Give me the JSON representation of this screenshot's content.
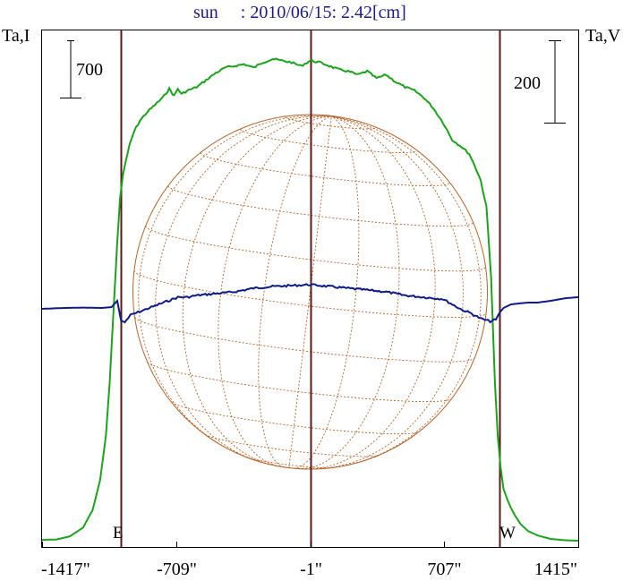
{
  "chart_data": {
    "type": "line",
    "title": "sun     : 2010/06/15: 2.42[cm]",
    "left_axis_label": "Ta,I",
    "right_axis_label": "Ta,V",
    "left_scale_bar_label": "700",
    "right_scale_bar_label": "200",
    "east_label": "E",
    "west_label": "W",
    "x_tick_labels": [
      "-1417\"",
      "-709\"",
      "-1\"",
      "707\"",
      "1415\""
    ],
    "x_tick_values": [
      -1417,
      -709,
      -1,
      707,
      1415
    ],
    "xlim": [
      -1417,
      1415
    ],
    "limb_positions": [
      -1000,
      997
    ],
    "center_position": -1,
    "ylim_I": [
      0,
      2800
    ],
    "ylim_V": [
      -1000,
      1000
    ],
    "grid": false,
    "series": [
      {
        "name": "I",
        "color": "#1aa31a",
        "x": [
          -1417,
          -1340,
          -1270,
          -1200,
          -1150,
          -1110,
          -1080,
          -1060,
          -1040,
          -1020,
          -1005,
          -990,
          -975,
          -955,
          -930,
          -900,
          -860,
          -820,
          -780,
          -745,
          -720,
          -700,
          -680,
          -650,
          -600,
          -550,
          -500,
          -450,
          -400,
          -350,
          -300,
          -250,
          -200,
          -150,
          -100,
          -50,
          0,
          50,
          100,
          150,
          200,
          250,
          300,
          350,
          400,
          450,
          500,
          550,
          600,
          650,
          700,
          750,
          800,
          840,
          870,
          900,
          930,
          955,
          975,
          990,
          1005,
          1020,
          1040,
          1060,
          1080,
          1110,
          1150,
          1200,
          1270,
          1340,
          1415
        ],
        "values": [
          10,
          12,
          30,
          80,
          180,
          350,
          600,
          900,
          1300,
          1700,
          1950,
          2080,
          2160,
          2250,
          2330,
          2390,
          2440,
          2480,
          2520,
          2570,
          2530,
          2570,
          2540,
          2560,
          2580,
          2620,
          2660,
          2690,
          2700,
          2710,
          2690,
          2720,
          2740,
          2730,
          2720,
          2700,
          2730,
          2720,
          2700,
          2680,
          2670,
          2650,
          2670,
          2630,
          2650,
          2610,
          2580,
          2560,
          2520,
          2460,
          2380,
          2280,
          2240,
          2200,
          2130,
          2050,
          1900,
          1500,
          900,
          600,
          420,
          300,
          240,
          190,
          150,
          100,
          60,
          35,
          15,
          8,
          5
        ]
      },
      {
        "name": "V",
        "color": "#0d1a8a",
        "x": [
          -1417,
          -1300,
          -1200,
          -1100,
          -1050,
          -1020,
          -1000,
          -980,
          -950,
          -900,
          -850,
          -800,
          -750,
          -700,
          -650,
          -600,
          -500,
          -400,
          -300,
          -200,
          -100,
          -1,
          100,
          200,
          300,
          400,
          500,
          600,
          700,
          750,
          800,
          850,
          900,
          950,
          980,
          997,
          1020,
          1060,
          1100,
          1150,
          1200,
          1270,
          1350,
          1415
        ],
        "values": [
          -5,
          0,
          2,
          0,
          5,
          40,
          -70,
          -80,
          -40,
          -20,
          0,
          20,
          40,
          60,
          60,
          70,
          80,
          90,
          110,
          120,
          125,
          130,
          120,
          110,
          100,
          90,
          70,
          60,
          50,
          20,
          -10,
          -30,
          -60,
          -75,
          -65,
          -30,
          0,
          20,
          25,
          30,
          30,
          40,
          55,
          60
        ]
      }
    ]
  }
}
